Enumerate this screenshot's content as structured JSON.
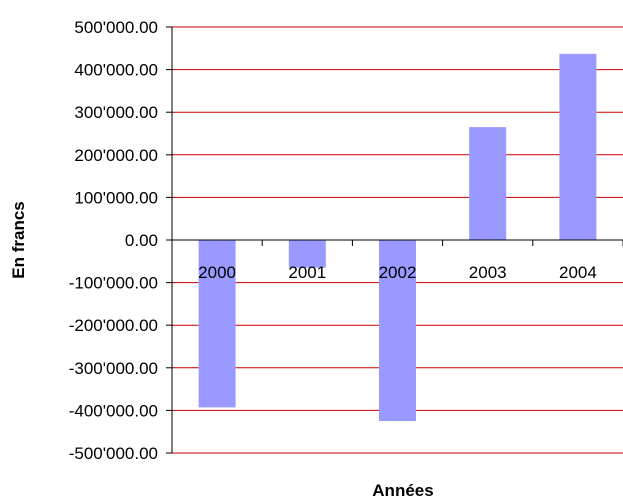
{
  "chart_data": {
    "type": "bar",
    "title": "",
    "xlabel": "Années",
    "ylabel": "En francs",
    "categories": [
      "2000",
      "2001",
      "2002",
      "2003",
      "2004"
    ],
    "values": [
      -393000,
      -65000,
      -425000,
      265000,
      437000
    ],
    "ylim": [
      -500000,
      500000
    ],
    "yticks": [
      500000,
      400000,
      300000,
      200000,
      100000,
      0,
      -100000,
      -200000,
      -300000,
      -400000,
      -500000
    ],
    "ytick_labels": [
      "500'000.00",
      "400'000.00",
      "300'000.00",
      "200'000.00",
      "100'000.00",
      "0.00",
      "-100'000.00",
      "-200'000.00",
      "-300'000.00",
      "-400'000.00",
      "-500'000.00"
    ],
    "grid": true,
    "legend": "none",
    "colors": {
      "bar": "#9999ff",
      "grid": "#cc0000",
      "axis": "#000000"
    }
  }
}
